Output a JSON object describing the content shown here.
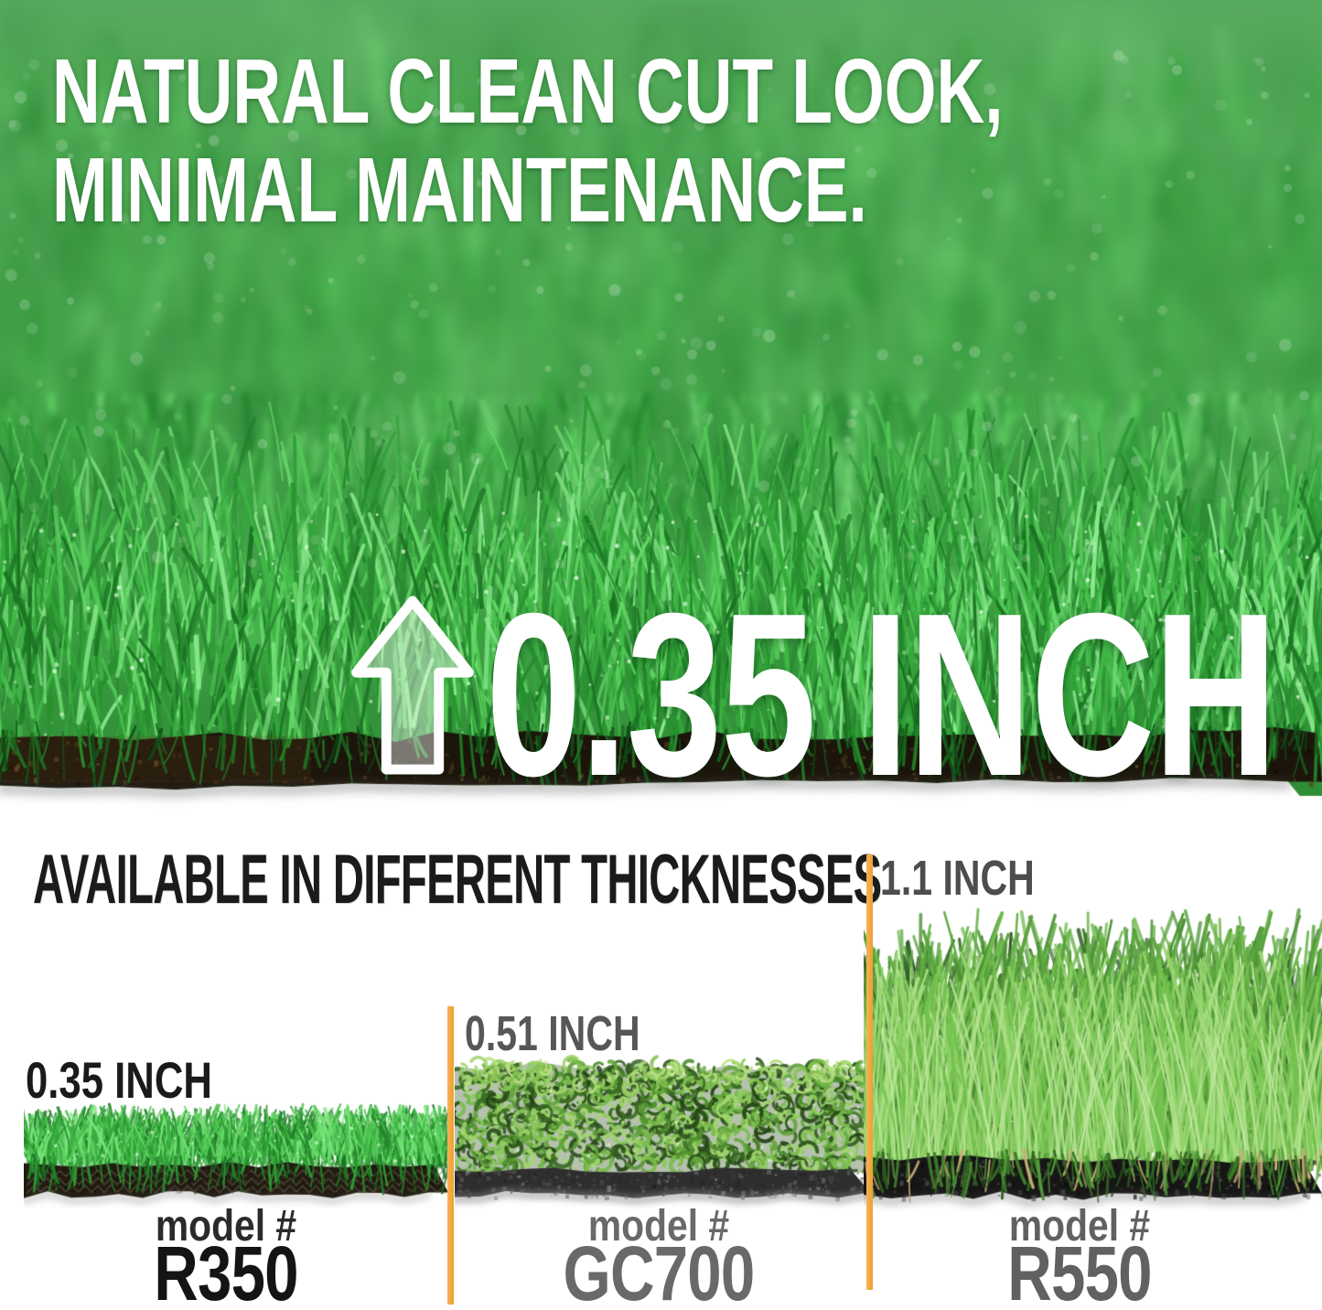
{
  "hero": {
    "headline_line1": "NATURAL CLEAN CUT LOOK,",
    "headline_line2": "MINIMAL MAINTENANCE.",
    "pile_height_callout": "0.35 INCH",
    "arrow_icon": "up-arrow"
  },
  "comparison": {
    "heading": "AVAILABLE IN DIFFERENT THICKNESSES",
    "items": [
      {
        "thickness": "0.35 INCH",
        "model_label": "model #",
        "model_number": "R350"
      },
      {
        "thickness": "0.51 INCH",
        "model_label": "model #",
        "model_number": "GC700"
      },
      {
        "thickness": "1.1 INCH",
        "model_label": "model #",
        "model_number": "R550"
      }
    ]
  },
  "colors": {
    "accent_orange": "#F2A742",
    "headline_white": "#FFFFFF",
    "heading_black": "#1B1B1B",
    "label_gray": "#696969",
    "grass_green": "#3F9C45",
    "backing_dark": "#1C150B"
  }
}
